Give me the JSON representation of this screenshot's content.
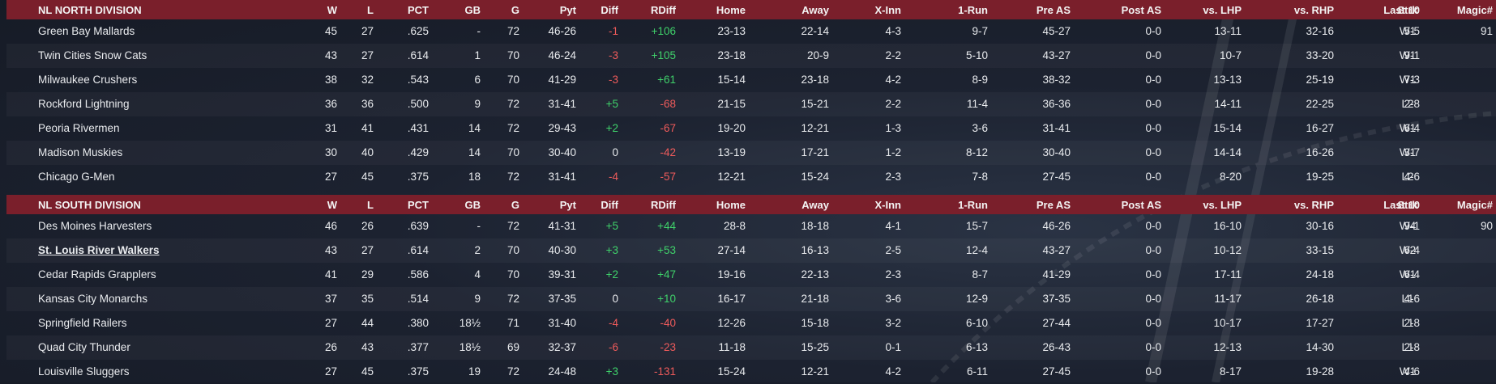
{
  "columns": [
    "W",
    "L",
    "PCT",
    "GB",
    "G",
    "Pyt",
    "Diff",
    "RDiff",
    "Home",
    "Away",
    "X-Inn",
    "1-Run",
    "Pre AS",
    "Post AS",
    "vs. LHP",
    "vs. RHP",
    "Last 10",
    "Strk",
    "Magic#"
  ],
  "divisions": [
    {
      "name": "NL NORTH DIVISION",
      "rows": [
        {
          "team": "Green Bay  Mallards",
          "w": "45",
          "l": "27",
          "pct": ".625",
          "gb": "-",
          "g": "72",
          "pyt": "46-26",
          "diff": "-1",
          "diff_sign": "neg",
          "rdiff": "+106",
          "rdiff_sign": "pos",
          "home": "23-13",
          "away": "22-14",
          "xinn": "4-3",
          "one_run": "9-7",
          "pre_as": "45-27",
          "post_as": "0-0",
          "vs_lhp": "13-11",
          "vs_rhp": "32-16",
          "last10": "5-5",
          "strk": "W1",
          "magic": "91"
        },
        {
          "team": "Twin Cities Snow Cats",
          "w": "43",
          "l": "27",
          "pct": ".614",
          "gb": "1",
          "g": "70",
          "pyt": "46-24",
          "diff": "-3",
          "diff_sign": "neg",
          "rdiff": "+105",
          "rdiff_sign": "pos",
          "home": "23-18",
          "away": "20-9",
          "xinn": "2-2",
          "one_run": "5-10",
          "pre_as": "43-27",
          "post_as": "0-0",
          "vs_lhp": "10-7",
          "vs_rhp": "33-20",
          "last10": "9-1",
          "strk": "W1",
          "magic": ""
        },
        {
          "team": "Milwaukee Crushers",
          "w": "38",
          "l": "32",
          "pct": ".543",
          "gb": "6",
          "g": "70",
          "pyt": "41-29",
          "diff": "-3",
          "diff_sign": "neg",
          "rdiff": "+61",
          "rdiff_sign": "pos",
          "home": "15-14",
          "away": "23-18",
          "xinn": "4-2",
          "one_run": "8-9",
          "pre_as": "38-32",
          "post_as": "0-0",
          "vs_lhp": "13-13",
          "vs_rhp": "25-19",
          "last10": "7-3",
          "strk": "W1",
          "magic": ""
        },
        {
          "team": "Rockford Lightning",
          "w": "36",
          "l": "36",
          "pct": ".500",
          "gb": "9",
          "g": "72",
          "pyt": "31-41",
          "diff": "+5",
          "diff_sign": "pos",
          "rdiff": "-68",
          "rdiff_sign": "neg",
          "home": "21-15",
          "away": "15-21",
          "xinn": "2-2",
          "one_run": "11-4",
          "pre_as": "36-36",
          "post_as": "0-0",
          "vs_lhp": "14-11",
          "vs_rhp": "22-25",
          "last10": "2-8",
          "strk": "L2",
          "magic": ""
        },
        {
          "team": "Peoria Rivermen",
          "w": "31",
          "l": "41",
          "pct": ".431",
          "gb": "14",
          "g": "72",
          "pyt": "29-43",
          "diff": "+2",
          "diff_sign": "pos",
          "rdiff": "-67",
          "rdiff_sign": "neg",
          "home": "19-20",
          "away": "12-21",
          "xinn": "1-3",
          "one_run": "3-6",
          "pre_as": "31-41",
          "post_as": "0-0",
          "vs_lhp": "15-14",
          "vs_rhp": "16-27",
          "last10": "6-4",
          "strk": "W1",
          "magic": ""
        },
        {
          "team": "Madison Muskies",
          "w": "30",
          "l": "40",
          "pct": ".429",
          "gb": "14",
          "g": "70",
          "pyt": "30-40",
          "diff": "0",
          "diff_sign": "neu",
          "rdiff": "-42",
          "rdiff_sign": "neg",
          "home": "13-19",
          "away": "17-21",
          "xinn": "1-2",
          "one_run": "8-12",
          "pre_as": "30-40",
          "post_as": "0-0",
          "vs_lhp": "14-14",
          "vs_rhp": "16-26",
          "last10": "3-7",
          "strk": "W1",
          "magic": ""
        },
        {
          "team": "Chicago G-Men",
          "w": "27",
          "l": "45",
          "pct": ".375",
          "gb": "18",
          "g": "72",
          "pyt": "31-41",
          "diff": "-4",
          "diff_sign": "neg",
          "rdiff": "-57",
          "rdiff_sign": "neg",
          "home": "12-21",
          "away": "15-24",
          "xinn": "2-3",
          "one_run": "7-8",
          "pre_as": "27-45",
          "post_as": "0-0",
          "vs_lhp": "8-20",
          "vs_rhp": "19-25",
          "last10": "4-6",
          "strk": "L2",
          "magic": ""
        }
      ]
    },
    {
      "name": "NL SOUTH DIVISION",
      "rows": [
        {
          "team": "Des Moines Harvesters",
          "w": "46",
          "l": "26",
          "pct": ".639",
          "gb": "-",
          "g": "72",
          "pyt": "41-31",
          "diff": "+5",
          "diff_sign": "pos",
          "rdiff": "+44",
          "rdiff_sign": "pos",
          "home": "28-8",
          "away": "18-18",
          "xinn": "4-1",
          "one_run": "15-7",
          "pre_as": "46-26",
          "post_as": "0-0",
          "vs_lhp": "16-10",
          "vs_rhp": "30-16",
          "last10": "9-1",
          "strk": "W4",
          "magic": "90"
        },
        {
          "team": "St. Louis River Walkers",
          "w": "43",
          "l": "27",
          "pct": ".614",
          "gb": "2",
          "g": "70",
          "pyt": "40-30",
          "diff": "+3",
          "diff_sign": "pos",
          "rdiff": "+53",
          "rdiff_sign": "pos",
          "home": "27-14",
          "away": "16-13",
          "xinn": "2-5",
          "one_run": "12-4",
          "pre_as": "43-27",
          "post_as": "0-0",
          "vs_lhp": "10-12",
          "vs_rhp": "33-15",
          "last10": "6-4",
          "strk": "W2",
          "magic": "",
          "linked": true
        },
        {
          "team": "Cedar Rapids Grapplers",
          "w": "41",
          "l": "29",
          "pct": ".586",
          "gb": "4",
          "g": "70",
          "pyt": "39-31",
          "diff": "+2",
          "diff_sign": "pos",
          "rdiff": "+47",
          "rdiff_sign": "pos",
          "home": "19-16",
          "away": "22-13",
          "xinn": "2-3",
          "one_run": "8-7",
          "pre_as": "41-29",
          "post_as": "0-0",
          "vs_lhp": "17-11",
          "vs_rhp": "24-18",
          "last10": "6-4",
          "strk": "W1",
          "magic": ""
        },
        {
          "team": "Kansas City Monarchs",
          "w": "37",
          "l": "35",
          "pct": ".514",
          "gb": "9",
          "g": "72",
          "pyt": "37-35",
          "diff": "0",
          "diff_sign": "neu",
          "rdiff": "+10",
          "rdiff_sign": "pos",
          "home": "16-17",
          "away": "21-18",
          "xinn": "3-6",
          "one_run": "12-9",
          "pre_as": "37-35",
          "post_as": "0-0",
          "vs_lhp": "11-17",
          "vs_rhp": "26-18",
          "last10": "4-6",
          "strk": "L1",
          "magic": ""
        },
        {
          "team": "Springfield Railers",
          "w": "27",
          "l": "44",
          "pct": ".380",
          "gb": "18½",
          "g": "71",
          "pyt": "31-40",
          "diff": "-4",
          "diff_sign": "neg",
          "rdiff": "-40",
          "rdiff_sign": "neg",
          "home": "12-26",
          "away": "15-18",
          "xinn": "3-2",
          "one_run": "6-10",
          "pre_as": "27-44",
          "post_as": "0-0",
          "vs_lhp": "10-17",
          "vs_rhp": "17-27",
          "last10": "2-8",
          "strk": "L1",
          "magic": ""
        },
        {
          "team": "Quad City Thunder",
          "w": "26",
          "l": "43",
          "pct": ".377",
          "gb": "18½",
          "g": "69",
          "pyt": "32-37",
          "diff": "-6",
          "diff_sign": "neg",
          "rdiff": "-23",
          "rdiff_sign": "neg",
          "home": "11-18",
          "away": "15-25",
          "xinn": "0-1",
          "one_run": "6-13",
          "pre_as": "26-43",
          "post_as": "0-0",
          "vs_lhp": "12-13",
          "vs_rhp": "14-30",
          "last10": "2-8",
          "strk": "L1",
          "magic": ""
        },
        {
          "team": "Louisville Sluggers",
          "w": "27",
          "l": "45",
          "pct": ".375",
          "gb": "19",
          "g": "72",
          "pyt": "24-48",
          "diff": "+3",
          "diff_sign": "pos",
          "rdiff": "-131",
          "rdiff_sign": "neg",
          "home": "15-24",
          "away": "12-21",
          "xinn": "4-2",
          "one_run": "6-11",
          "pre_as": "27-45",
          "post_as": "0-0",
          "vs_lhp": "8-17",
          "vs_rhp": "19-28",
          "last10": "4-6",
          "strk": "W1",
          "magic": ""
        }
      ]
    }
  ]
}
